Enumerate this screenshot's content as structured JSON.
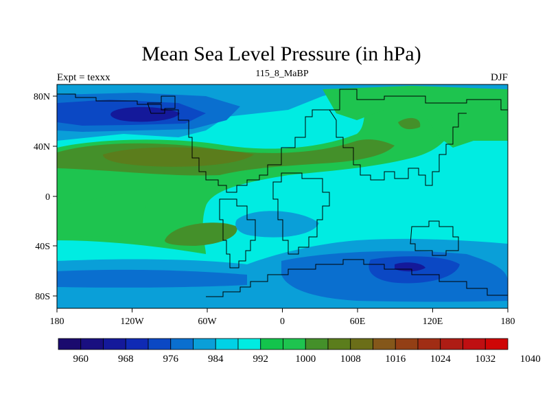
{
  "title": "Mean Sea Level Pressure (in hPa)",
  "subtitle": "115_8_MaBP",
  "left_label": "Expt = texxx",
  "right_label": "DJF",
  "x_tick_labels": [
    "180",
    "120W",
    "60W",
    "0",
    "60E",
    "120E",
    "180"
  ],
  "y_tick_labels": [
    "80N",
    "40N",
    "0",
    "40S",
    "80S"
  ],
  "colorbar": {
    "labels": [
      "960",
      "968",
      "976",
      "984",
      "992",
      "1000",
      "1008",
      "1016",
      "1024",
      "1032",
      "1040"
    ],
    "colors": [
      "#1a0a6e",
      "#190f80",
      "#14199a",
      "#0f2ab4",
      "#0b48c4",
      "#0a6fcf",
      "#0a9fd8",
      "#00d2e6",
      "#00ece2",
      "#13c44c",
      "#1ec44f",
      "#44902a",
      "#5b7d1c",
      "#6b6e18",
      "#84571a",
      "#933f15",
      "#a02d14",
      "#ae1c14",
      "#bf0f12",
      "#cf0606"
    ]
  },
  "map_colors": {
    "cyan": "#00ece2",
    "light_blue": "#0a9fd8",
    "mid_blue": "#0a6fcf",
    "blue": "#0b48c4",
    "deep_blue": "#14199a",
    "green": "#1ec44f",
    "dark_green": "#44902a",
    "olive": "#5b7d1c"
  }
}
